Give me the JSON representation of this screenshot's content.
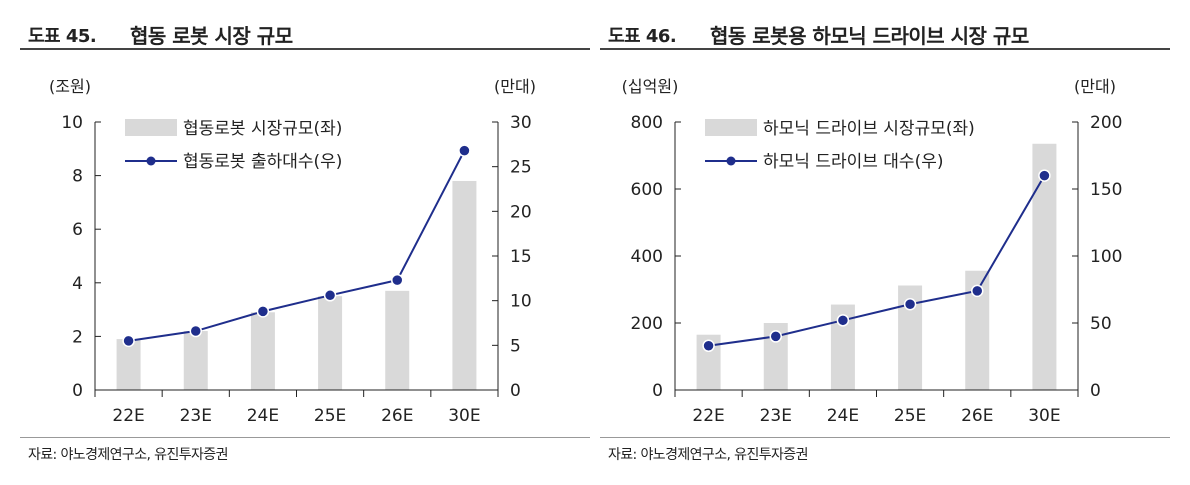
{
  "colors": {
    "bar": "#d9d9d9",
    "line": "#1f2e8c",
    "axis": "#222222",
    "rule": "#444444"
  },
  "chart_data": [
    {
      "type": "bar+line",
      "fig_no": "도표 45.",
      "title": "협동 로봇 시장 규모",
      "left_unit": "(조원)",
      "right_unit": "(만대)",
      "categories": [
        "22E",
        "23E",
        "24E",
        "25E",
        "26E",
        "30E"
      ],
      "series": [
        {
          "name": "협동로봇 시장규모(좌)",
          "kind": "bar",
          "axis": "left",
          "values": [
            1.9,
            2.2,
            2.9,
            3.5,
            3.7,
            7.8
          ]
        },
        {
          "name": "협동로봇 출하대수(우)",
          "kind": "line",
          "axis": "right",
          "values": [
            5.5,
            6.6,
            8.8,
            10.6,
            12.3,
            26.8
          ]
        }
      ],
      "left_ylim": [
        0,
        10
      ],
      "left_ticks": [
        0,
        2,
        4,
        6,
        8,
        10
      ],
      "right_ylim": [
        0,
        30
      ],
      "right_ticks": [
        0,
        5,
        10,
        15,
        20,
        25,
        30
      ],
      "source": "자료: 야노경제연구소, 유진투자증권"
    },
    {
      "type": "bar+line",
      "fig_no": "도표 46.",
      "title": "협동 로봇용 하모닉 드라이브 시장 규모",
      "left_unit": "(십억원)",
      "right_unit": "(만대)",
      "categories": [
        "22E",
        "23E",
        "24E",
        "25E",
        "26E",
        "30E"
      ],
      "series": [
        {
          "name": "하모닉 드라이브 시장규모(좌)",
          "kind": "bar",
          "axis": "left",
          "values": [
            165,
            200,
            255,
            312,
            356,
            735
          ]
        },
        {
          "name": "하모닉 드라이브 대수(우)",
          "kind": "line",
          "axis": "right",
          "values": [
            33,
            40,
            52,
            64,
            74,
            160
          ]
        }
      ],
      "left_ylim": [
        0,
        800
      ],
      "left_ticks": [
        0,
        200,
        400,
        600,
        800
      ],
      "right_ylim": [
        0,
        200
      ],
      "right_ticks": [
        0,
        50,
        100,
        150,
        200
      ],
      "source": "자료: 야노경제연구소, 유진투자증권"
    }
  ]
}
